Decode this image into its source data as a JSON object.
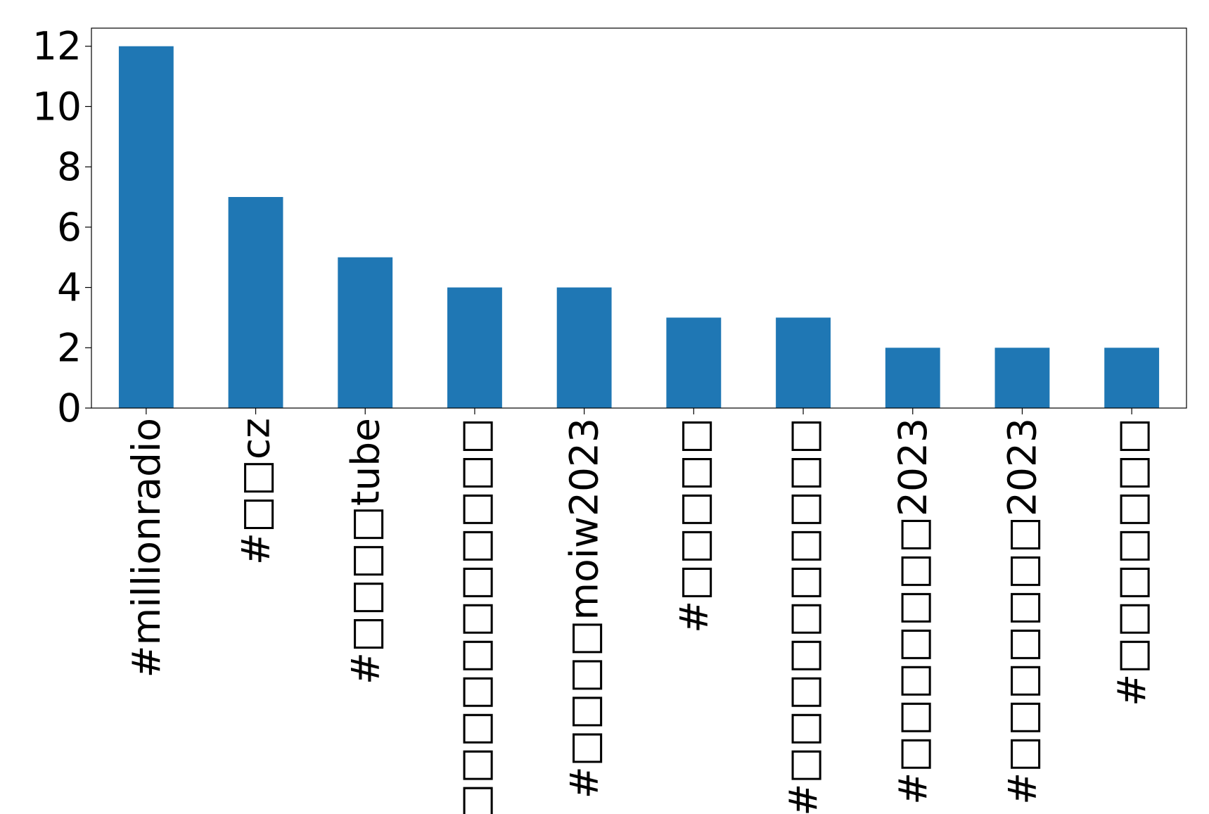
{
  "chart_data": {
    "type": "bar",
    "categories": [
      "#millionradio",
      "#□□cz",
      "#□□□□tube",
      "#□□□□□□□□□□□",
      "#□□□□moiw2023",
      "#□□□□□",
      "#□□□□□□□□□□",
      "#□□□□□□□2023",
      "#□□□□□□□2023",
      "#□□□□□□□"
    ],
    "values": [
      12,
      7,
      5,
      4,
      4,
      3,
      3,
      2,
      2,
      2
    ],
    "color": "#1f77b4",
    "ylim": [
      0,
      12.6
    ],
    "yticks": [
      0,
      2,
      4,
      6,
      8,
      10,
      12
    ],
    "grid": false
  }
}
